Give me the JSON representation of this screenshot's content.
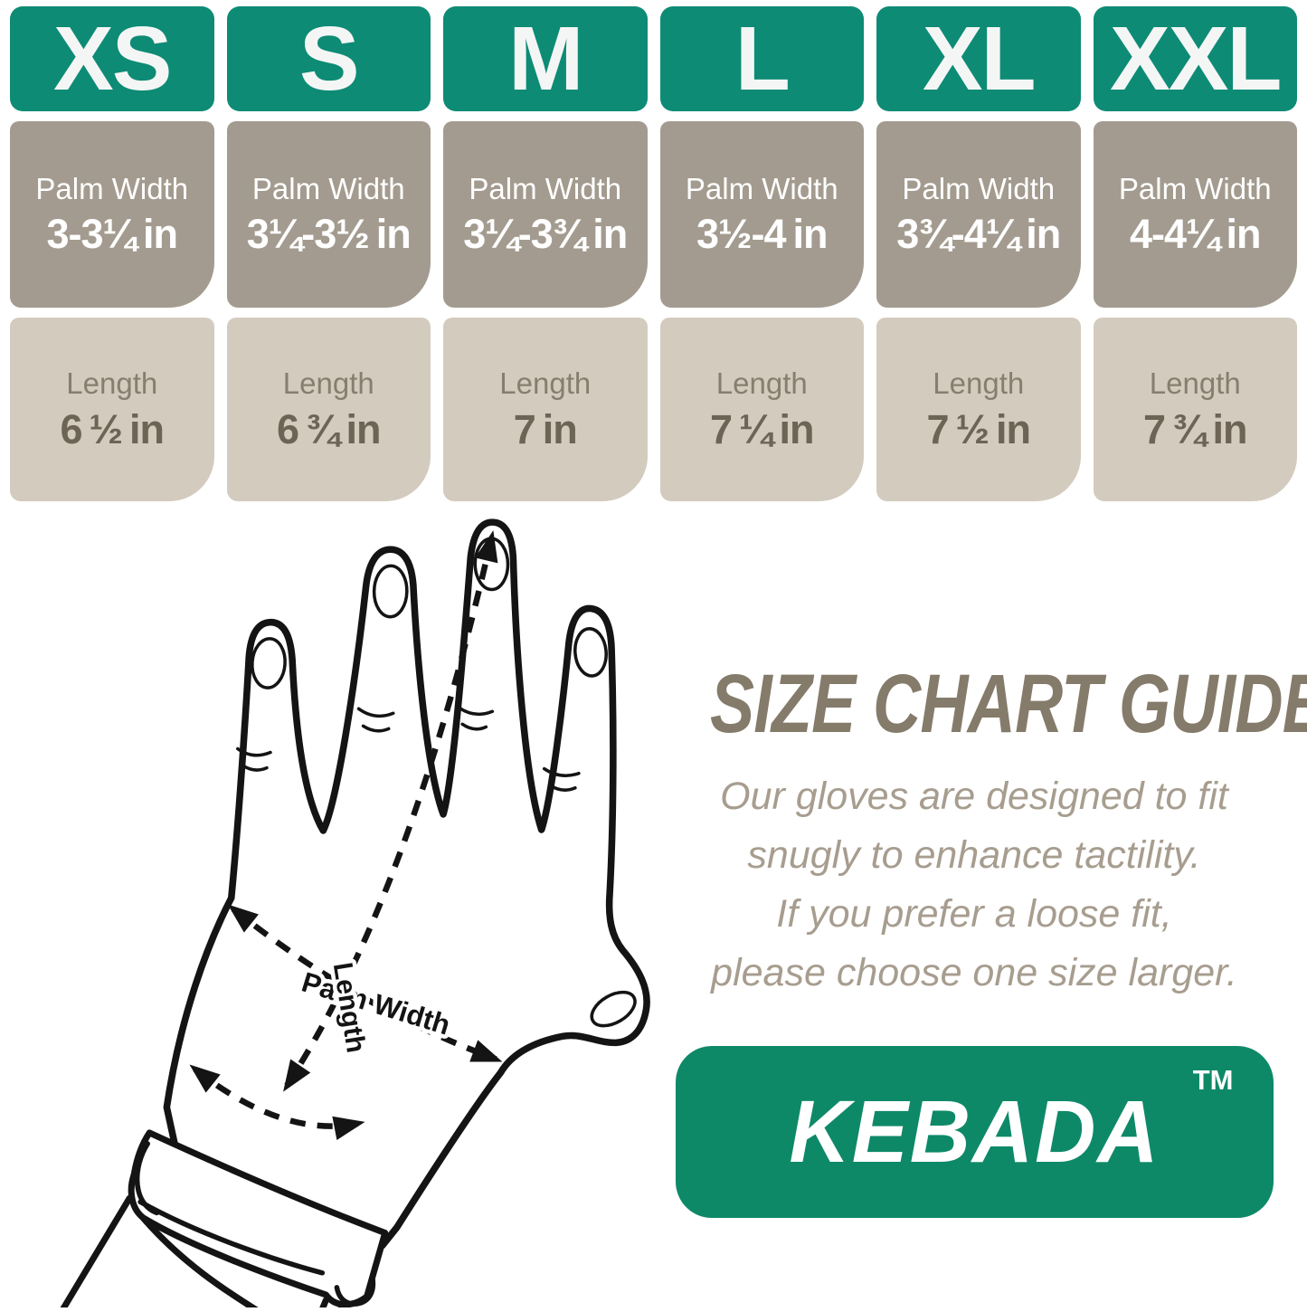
{
  "size_chart": {
    "palm_label": "Palm Width",
    "length_label": "Length",
    "columns": [
      {
        "size": "XS",
        "palm_width": "3-3¼ in",
        "length": "6 ½ in"
      },
      {
        "size": "S",
        "palm_width": "3¼-3½ in",
        "length": "6 ¾ in"
      },
      {
        "size": "M",
        "palm_width": "3¼-3¾ in",
        "length": "7 in"
      },
      {
        "size": "L",
        "palm_width": "3½-4 in",
        "length": "7 ¼ in"
      },
      {
        "size": "XL",
        "palm_width": "3¾-4¼ in",
        "length": "7 ½ in"
      },
      {
        "size": "XXL",
        "palm_width": "4-4¼ in",
        "length": "7 ¾ in"
      }
    ]
  },
  "hand_diagram": {
    "palm_width_label": "Palm Width",
    "length_label": "Length"
  },
  "info": {
    "title": "SIZE CHART GUIDE",
    "lines": [
      "Our gloves are designed to fit",
      "snugly to enhance tactility.",
      "If you prefer a loose fit,",
      "please choose one size larger."
    ],
    "brand": "KEBADA",
    "trademark": "TM"
  },
  "colors": {
    "teal_header": "#0d8b75",
    "logo_green": "#0e8968",
    "palm_cell_bg": "#a39b8f",
    "length_cell_bg": "#d3cbbe",
    "length_label_text": "#877e6f",
    "length_value_text": "#6d6456",
    "title_text": "#857b6b",
    "paragraph_text": "#a79d8f",
    "line_art": "#141414"
  }
}
